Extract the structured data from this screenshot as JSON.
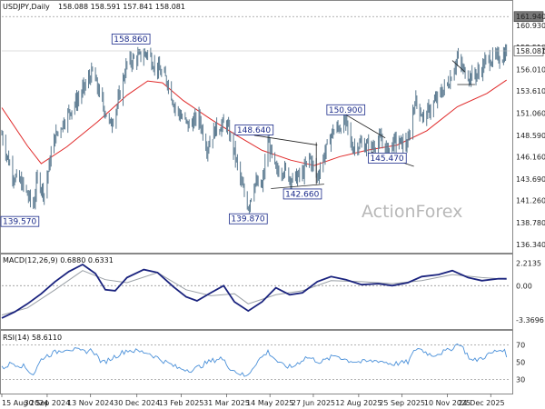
{
  "chart_data": [
    {
      "type": "ohlc",
      "header": "USDJPY,Daily",
      "header_values": "158.088 158.591 157.841 158.081",
      "price_ticks": [
        "160.930",
        "158.510",
        "156.010",
        "153.610",
        "151.060",
        "148.590",
        "146.160",
        "143.690",
        "141.260",
        "138.780",
        "136.340"
      ],
      "tick_values": [
        160.93,
        158.51,
        156.01,
        153.61,
        151.06,
        148.59,
        146.16,
        143.69,
        141.26,
        138.78,
        136.34
      ],
      "ylim": [
        135.5,
        163.6
      ],
      "last_price_label": "158.081",
      "last_price": 158.081,
      "ref_level_label": "161.940",
      "ref_level": 161.94,
      "colors": {
        "bars": "#5b7a90",
        "ma": "#e02a2a",
        "boxes": "#1a2a8a",
        "trendlines": "#222222"
      },
      "annotations": [
        {
          "text": "158.860",
          "x": "2024-12-24",
          "value": 158.86
        },
        {
          "text": "139.570",
          "x": "2024-09-16",
          "value": 139.57
        },
        {
          "text": "148.640",
          "x": "2025-04-28",
          "value": 148.64
        },
        {
          "text": "139.870",
          "x": "2025-04-22",
          "value": 139.87
        },
        {
          "text": "142.660",
          "x": "2025-06-16",
          "value": 142.66
        },
        {
          "text": "150.900",
          "x": "2025-07-30",
          "value": 150.9
        },
        {
          "text": "145.470",
          "x": "2025-09-10",
          "value": 145.47
        }
      ],
      "close_path": [
        [
          "2024-08-15",
          148.7
        ],
        [
          "2024-08-20",
          146.4
        ],
        [
          "2024-08-27",
          144.0
        ],
        [
          "2024-09-04",
          143.2
        ],
        [
          "2024-09-16",
          140.6
        ],
        [
          "2024-09-20",
          143.8
        ],
        [
          "2024-09-27",
          142.1
        ],
        [
          "2024-10-07",
          148.2
        ],
        [
          "2024-10-21",
          151.0
        ],
        [
          "2024-11-01",
          152.8
        ],
        [
          "2024-11-15",
          155.7
        ],
        [
          "2024-11-25",
          152.2
        ],
        [
          "2024-12-03",
          149.7
        ],
        [
          "2024-12-10",
          151.9
        ],
        [
          "2024-12-20",
          156.7
        ],
        [
          "2025-01-10",
          157.9
        ],
        [
          "2025-01-15",
          156.8
        ],
        [
          "2025-01-30",
          154.7
        ],
        [
          "2025-02-07",
          151.6
        ],
        [
          "2025-02-20",
          149.7
        ],
        [
          "2025-03-03",
          150.6
        ],
        [
          "2025-03-11",
          147.2
        ],
        [
          "2025-03-20",
          149.4
        ],
        [
          "2025-03-31",
          149.9
        ],
        [
          "2025-04-08",
          146.6
        ],
        [
          "2025-04-15",
          143.1
        ],
        [
          "2025-04-22",
          140.6
        ],
        [
          "2025-04-28",
          143.2
        ],
        [
          "2025-05-06",
          142.8
        ],
        [
          "2025-05-12",
          147.9
        ],
        [
          "2025-05-20",
          144.5
        ],
        [
          "2025-05-28",
          144.8
        ],
        [
          "2025-06-05",
          143.6
        ],
        [
          "2025-06-16",
          144.2
        ],
        [
          "2025-06-23",
          146.2
        ],
        [
          "2025-07-01",
          143.9
        ],
        [
          "2025-07-08",
          146.4
        ],
        [
          "2025-07-16",
          148.9
        ],
        [
          "2025-07-30",
          150.1
        ],
        [
          "2025-08-05",
          147.3
        ],
        [
          "2025-08-14",
          147.6
        ],
        [
          "2025-08-25",
          147.2
        ],
        [
          "2025-09-03",
          148.1
        ],
        [
          "2025-09-10",
          146.9
        ],
        [
          "2025-09-18",
          147.9
        ],
        [
          "2025-10-01",
          147.6
        ],
        [
          "2025-10-08",
          152.6
        ],
        [
          "2025-10-17",
          150.5
        ],
        [
          "2025-10-28",
          152.3
        ],
        [
          "2025-11-12",
          154.7
        ],
        [
          "2025-11-20",
          157.3
        ],
        [
          "2025-11-26",
          155.9
        ],
        [
          "2025-12-03",
          155.2
        ],
        [
          "2025-12-12",
          155.6
        ],
        [
          "2025-12-20",
          157.1
        ],
        [
          "2026-01-05",
          157.4
        ],
        [
          "2026-01-09",
          158.1
        ]
      ],
      "ma_path": [
        [
          "2024-08-15",
          151.7
        ],
        [
          "2024-09-10",
          147.4
        ],
        [
          "2024-09-24",
          145.4
        ],
        [
          "2024-10-20",
          147.3
        ],
        [
          "2024-11-20",
          150.1
        ],
        [
          "2024-12-20",
          153.1
        ],
        [
          "2025-01-10",
          154.7
        ],
        [
          "2025-01-25",
          154.5
        ],
        [
          "2025-02-15",
          152.5
        ],
        [
          "2025-03-15",
          150.4
        ],
        [
          "2025-04-10",
          148.6
        ],
        [
          "2025-05-06",
          146.9
        ],
        [
          "2025-06-04",
          145.8
        ],
        [
          "2025-06-28",
          145.2
        ],
        [
          "2025-07-24",
          146.2
        ],
        [
          "2025-08-20",
          146.9
        ],
        [
          "2025-09-20",
          147.5
        ],
        [
          "2025-10-20",
          149.1
        ],
        [
          "2025-11-20",
          151.8
        ],
        [
          "2025-12-20",
          153.3
        ],
        [
          "2026-01-09",
          154.8
        ]
      ],
      "trendlines": [
        {
          "from": [
            "2025-04-28",
            148.6
          ],
          "to": [
            "2025-07-01",
            147.5
          ]
        },
        {
          "from": [
            "2025-05-15",
            142.6
          ],
          "to": [
            "2025-07-08",
            143.1
          ]
        },
        {
          "from": [
            "2025-06-30",
            147.8
          ],
          "to": [
            "2025-06-30",
            143.1
          ]
        },
        {
          "from": [
            "2025-07-30",
            150.9
          ],
          "to": [
            "2025-09-08",
            148.3
          ]
        },
        {
          "from": [
            "2025-08-25",
            146.7
          ],
          "to": [
            "2025-10-07",
            145.1
          ]
        },
        {
          "from": [
            "2025-11-15",
            157.0
          ],
          "to": [
            "2025-11-28",
            155.7
          ]
        },
        {
          "from": [
            "2025-11-20",
            154.3
          ],
          "to": [
            "2025-12-08",
            154.3
          ]
        }
      ]
    },
    {
      "type": "line",
      "header": "MACD(12,26,9) 0.6880 0.6331",
      "ticks": [
        "2.2135",
        "0.00",
        "-3.3696"
      ],
      "tick_values": [
        2.2135,
        0,
        -3.3696
      ],
      "ylim": [
        -4.2,
        3.0
      ],
      "series": [
        {
          "name": "",
          "color": "#1a237e",
          "points": [
            [
              "2024-08-15",
              -3.2
            ],
            [
              "2024-08-28",
              -2.6
            ],
            [
              "2024-09-10",
              -1.8
            ],
            [
              "2024-09-24",
              -0.8
            ],
            [
              "2024-10-08",
              0.4
            ],
            [
              "2024-10-22",
              1.4
            ],
            [
              "2024-11-05",
              2.1
            ],
            [
              "2024-11-18",
              1.2
            ],
            [
              "2024-11-28",
              -0.4
            ],
            [
              "2024-12-08",
              -0.5
            ],
            [
              "2024-12-20",
              0.8
            ],
            [
              "2025-01-06",
              1.6
            ],
            [
              "2025-01-20",
              1.3
            ],
            [
              "2025-02-05",
              -0.1
            ],
            [
              "2025-02-18",
              -1.1
            ],
            [
              "2025-03-01",
              -1.5
            ],
            [
              "2025-03-15",
              -0.7
            ],
            [
              "2025-03-28",
              0.0
            ],
            [
              "2025-04-08",
              -1.6
            ],
            [
              "2025-04-22",
              -2.5
            ],
            [
              "2025-05-06",
              -1.6
            ],
            [
              "2025-05-20",
              -0.2
            ],
            [
              "2025-06-03",
              -0.9
            ],
            [
              "2025-06-16",
              -0.7
            ],
            [
              "2025-07-01",
              0.4
            ],
            [
              "2025-07-15",
              0.9
            ],
            [
              "2025-07-30",
              0.6
            ],
            [
              "2025-08-15",
              0.1
            ],
            [
              "2025-09-01",
              0.2
            ],
            [
              "2025-09-15",
              0.0
            ],
            [
              "2025-10-01",
              0.3
            ],
            [
              "2025-10-15",
              0.9
            ],
            [
              "2025-11-01",
              1.1
            ],
            [
              "2025-11-15",
              1.5
            ],
            [
              "2025-12-01",
              0.8
            ],
            [
              "2025-12-15",
              0.5
            ],
            [
              "2026-01-01",
              0.7
            ],
            [
              "2026-01-09",
              0.69
            ]
          ]
        },
        {
          "name": "",
          "color": "#9aa0a6",
          "points": [
            [
              "2024-08-15",
              -2.9
            ],
            [
              "2024-09-10",
              -2.2
            ],
            [
              "2024-10-08",
              -0.4
            ],
            [
              "2024-11-05",
              1.5
            ],
            [
              "2024-11-28",
              0.6
            ],
            [
              "2024-12-20",
              0.3
            ],
            [
              "2025-01-20",
              1.3
            ],
            [
              "2025-02-18",
              -0.4
            ],
            [
              "2025-03-15",
              -1.0
            ],
            [
              "2025-04-08",
              -0.8
            ],
            [
              "2025-04-22",
              -1.8
            ],
            [
              "2025-05-20",
              -0.9
            ],
            [
              "2025-06-16",
              -0.5
            ],
            [
              "2025-07-15",
              0.5
            ],
            [
              "2025-08-15",
              0.4
            ],
            [
              "2025-09-15",
              0.2
            ],
            [
              "2025-10-15",
              0.5
            ],
            [
              "2025-11-15",
              1.1
            ],
            [
              "2025-12-15",
              0.8
            ],
            [
              "2026-01-09",
              0.63
            ]
          ]
        }
      ]
    },
    {
      "type": "line",
      "header": "RSI(14) 58.6110",
      "ticks": [
        "70",
        "50",
        "30"
      ],
      "tick_values": [
        70,
        50,
        30
      ],
      "ylim": [
        15,
        85
      ],
      "series": [
        {
          "name": "",
          "color": "#4a90d9",
          "points": [
            [
              "2024-08-15",
              43
            ],
            [
              "2024-08-25",
              49
            ],
            [
              "2024-09-05",
              46
            ],
            [
              "2024-09-16",
              36
            ],
            [
              "2024-09-25",
              55
            ],
            [
              "2024-10-05",
              60
            ],
            [
              "2024-10-20",
              66
            ],
            [
              "2024-11-05",
              62
            ],
            [
              "2024-11-15",
              64
            ],
            [
              "2024-11-25",
              49
            ],
            [
              "2024-12-05",
              55
            ],
            [
              "2024-12-20",
              64
            ],
            [
              "2025-01-10",
              61
            ],
            [
              "2025-01-25",
              52
            ],
            [
              "2025-02-10",
              43
            ],
            [
              "2025-02-25",
              41
            ],
            [
              "2025-03-10",
              49
            ],
            [
              "2025-03-25",
              55
            ],
            [
              "2025-04-05",
              42
            ],
            [
              "2025-04-20",
              33
            ],
            [
              "2025-05-01",
              51
            ],
            [
              "2025-05-12",
              62
            ],
            [
              "2025-05-25",
              47
            ],
            [
              "2025-06-05",
              44
            ],
            [
              "2025-06-20",
              56
            ],
            [
              "2025-07-05",
              50
            ],
            [
              "2025-07-20",
              58
            ],
            [
              "2025-08-01",
              52
            ],
            [
              "2025-08-15",
              50
            ],
            [
              "2025-09-01",
              52
            ],
            [
              "2025-09-15",
              48
            ],
            [
              "2025-10-01",
              50
            ],
            [
              "2025-10-10",
              67
            ],
            [
              "2025-10-25",
              58
            ],
            [
              "2025-11-10",
              63
            ],
            [
              "2025-11-22",
              72
            ],
            [
              "2025-12-05",
              51
            ],
            [
              "2025-12-15",
              55
            ],
            [
              "2025-12-28",
              62
            ],
            [
              "2026-01-05",
              65
            ],
            [
              "2026-01-09",
              58.6
            ]
          ]
        }
      ]
    },
    {
      "type": "axis",
      "x_ticks": [
        "15 Aug 2024",
        "30 Sep 2024",
        "13 Nov 2024",
        "30 Dec 2024",
        "13 Feb 2025",
        "31 Mar 2025",
        "14 May 2025",
        "27 Jun 2025",
        "12 Aug 2025",
        "25 Sep 2025",
        "10 Nov 2025",
        "24 Dec 2025"
      ],
      "x_tick_dates": [
        "2024-08-15",
        "2024-09-30",
        "2024-11-13",
        "2024-12-30",
        "2025-02-13",
        "2025-03-31",
        "2025-05-14",
        "2025-06-27",
        "2025-08-12",
        "2025-09-25",
        "2025-11-10",
        "2025-12-24"
      ],
      "x_range": [
        "2024-08-15",
        "2026-01-13"
      ]
    }
  ],
  "watermark": "ActionForex"
}
